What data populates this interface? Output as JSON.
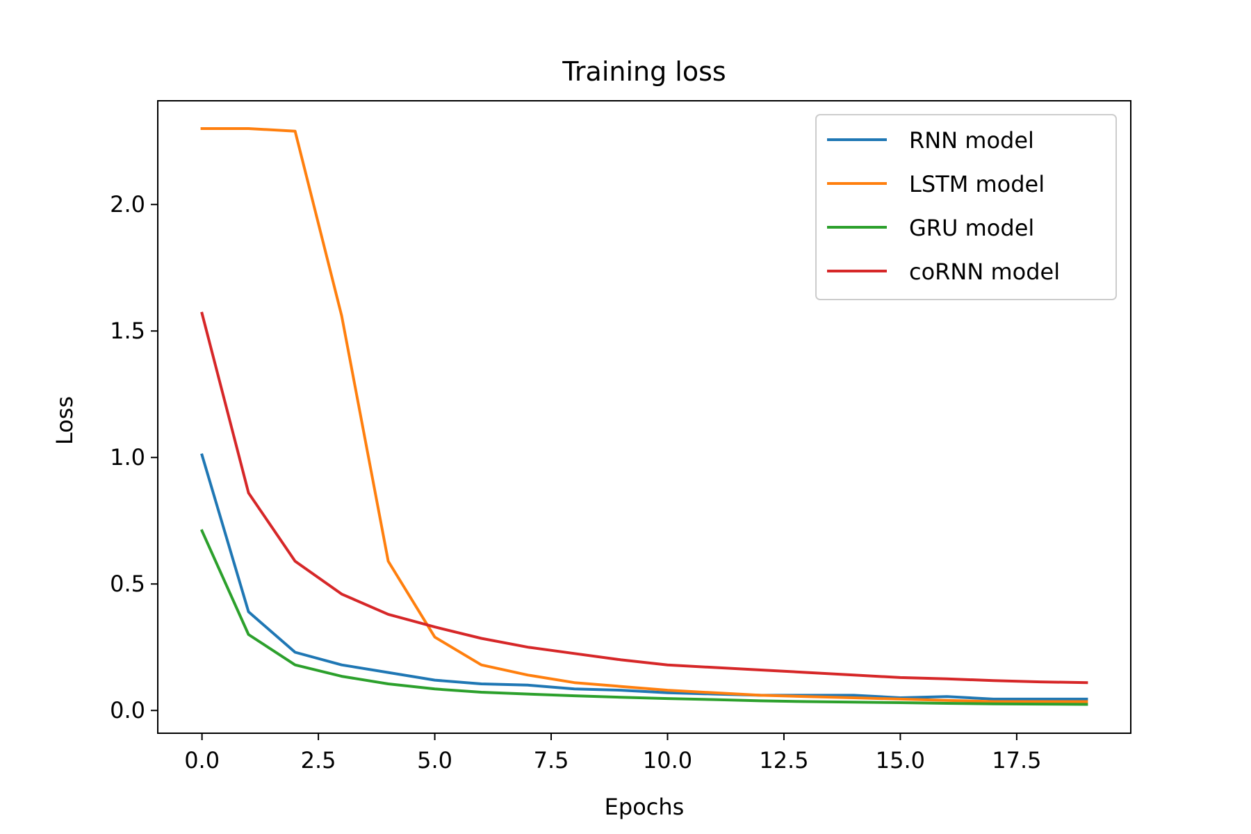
{
  "chart_data": {
    "type": "line",
    "title": "Training loss",
    "xlabel": "Epochs",
    "ylabel": "Loss",
    "xlim": [
      -0.95,
      19.95
    ],
    "ylim": [
      -0.09,
      2.41
    ],
    "xticks": [
      0.0,
      2.5,
      5.0,
      7.5,
      10.0,
      12.5,
      15.0,
      17.5
    ],
    "xtick_labels": [
      "0.0",
      "2.5",
      "5.0",
      "7.5",
      "10.0",
      "12.5",
      "15.0",
      "17.5"
    ],
    "yticks": [
      0.0,
      0.5,
      1.0,
      1.5,
      2.0
    ],
    "ytick_labels": [
      "0.0",
      "0.5",
      "1.0",
      "1.5",
      "2.0"
    ],
    "grid": false,
    "legend_position": "top-right",
    "x": [
      0,
      1,
      2,
      3,
      4,
      5,
      6,
      7,
      8,
      9,
      10,
      11,
      12,
      13,
      14,
      15,
      16,
      17,
      18,
      19
    ],
    "series": [
      {
        "name": "RNN model",
        "color": "#1f77b4",
        "values": [
          1.01,
          0.39,
          0.23,
          0.18,
          0.15,
          0.12,
          0.105,
          0.1,
          0.085,
          0.08,
          0.07,
          0.065,
          0.06,
          0.06,
          0.06,
          0.05,
          0.055,
          0.045,
          0.045,
          0.045
        ]
      },
      {
        "name": "LSTM model",
        "color": "#ff7f0e",
        "values": [
          2.3,
          2.3,
          2.29,
          1.56,
          0.59,
          0.29,
          0.18,
          0.14,
          0.11,
          0.095,
          0.08,
          0.07,
          0.06,
          0.055,
          0.05,
          0.045,
          0.04,
          0.035,
          0.035,
          0.035
        ]
      },
      {
        "name": "GRU model",
        "color": "#2ca02c",
        "values": [
          0.71,
          0.3,
          0.18,
          0.135,
          0.105,
          0.085,
          0.072,
          0.065,
          0.058,
          0.052,
          0.047,
          0.043,
          0.038,
          0.035,
          0.033,
          0.031,
          0.028,
          0.026,
          0.025,
          0.024
        ]
      },
      {
        "name": "coRNN model",
        "color": "#d62728",
        "values": [
          1.57,
          0.86,
          0.59,
          0.46,
          0.38,
          0.33,
          0.285,
          0.25,
          0.225,
          0.2,
          0.18,
          0.17,
          0.16,
          0.15,
          0.14,
          0.13,
          0.125,
          0.118,
          0.113,
          0.11
        ]
      }
    ]
  }
}
